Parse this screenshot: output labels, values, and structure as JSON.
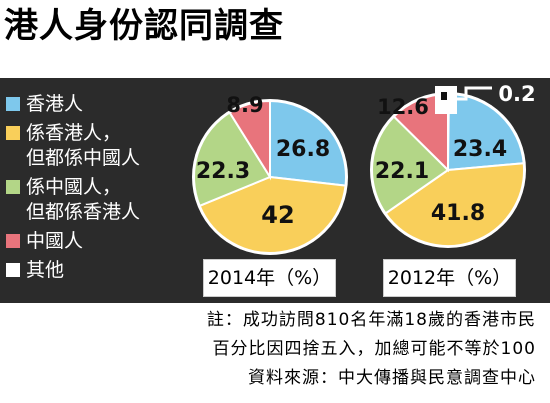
{
  "title": "港人身份認同調查",
  "colors": {
    "hk": "#7ec8ec",
    "hk_china": "#f9cf5a",
    "china_hk": "#b3d687",
    "china": "#e8747c",
    "other": "#ffffff"
  },
  "legend": [
    {
      "key": "hk",
      "label": "香港人"
    },
    {
      "key": "hk_china",
      "label": "係香港人，\n但都係中國人"
    },
    {
      "key": "china_hk",
      "label": "係中國人，\n但都係香港人"
    },
    {
      "key": "china",
      "label": "中國人"
    },
    {
      "key": "other",
      "label": "其他"
    }
  ],
  "chart_data": [
    {
      "type": "pie",
      "caption": "2014年（%）",
      "slices": [
        {
          "key": "hk",
          "label": "香港人",
          "value": 26.8,
          "display": "26.8"
        },
        {
          "key": "hk_china",
          "label": "係香港人，但都係中國人",
          "value": 42,
          "display": "42"
        },
        {
          "key": "china_hk",
          "label": "係中國人，但都係香港人",
          "value": 22.3,
          "display": "22.3"
        },
        {
          "key": "china",
          "label": "中國人",
          "value": 8.9,
          "display": "8.9"
        }
      ]
    },
    {
      "type": "pie",
      "caption": "2012年（%）",
      "slices": [
        {
          "key": "other",
          "label": "其他",
          "value": 0.2,
          "display": "0.2"
        },
        {
          "key": "hk",
          "label": "香港人",
          "value": 23.4,
          "display": "23.4"
        },
        {
          "key": "hk_china",
          "label": "係香港人，但都係中國人",
          "value": 41.8,
          "display": "41.8"
        },
        {
          "key": "china_hk",
          "label": "係中國人，但都係香港人",
          "value": 22.1,
          "display": "22.1"
        },
        {
          "key": "china",
          "label": "中國人",
          "value": 12.6,
          "display": "12.6"
        }
      ]
    }
  ],
  "footnotes": [
    "註：成功訪問810名年滿18歲的香港市民",
    "百分比因四捨五入，加總可能不等於100",
    "資料來源：中大傳播與民意調查中心"
  ]
}
